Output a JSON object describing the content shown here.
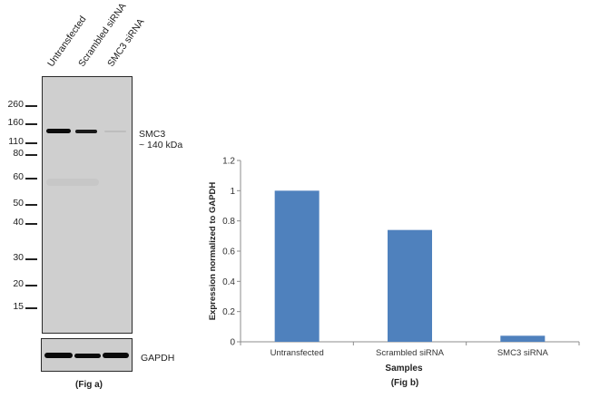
{
  "fig_a": {
    "caption": "(Fig a)",
    "lane_labels": [
      "Untransfected",
      "Scrambled siRNA",
      "SMC3 siRNA"
    ],
    "mw_markers": [
      "260",
      "160",
      "110",
      "80",
      "60",
      "50",
      "40",
      "30",
      "20",
      "15"
    ],
    "target_label": "SMC3",
    "target_size": "~ 140 kDa",
    "loading_control_label": "GAPDH",
    "band_intensity": {
      "SMC3": [
        1.0,
        0.74,
        0.04
      ],
      "GAPDH": [
        1.0,
        1.0,
        1.0
      ]
    }
  },
  "chart_data": {
    "type": "bar",
    "title": "",
    "caption": "(Fig b)",
    "categories": [
      "Untransfected",
      "Scrambled siRNA",
      "SMC3 siRNA"
    ],
    "values": [
      1.0,
      0.74,
      0.04
    ],
    "xlabel": "Samples",
    "ylabel": "Expression normalized to GAPDH",
    "ylim": [
      0,
      1.2
    ],
    "yticks": [
      "0",
      "0.2",
      "0.4",
      "0.6",
      "0.8",
      "1",
      "1.2"
    ],
    "grid": false,
    "legend": "none",
    "bar_color": "#4f81bd"
  }
}
